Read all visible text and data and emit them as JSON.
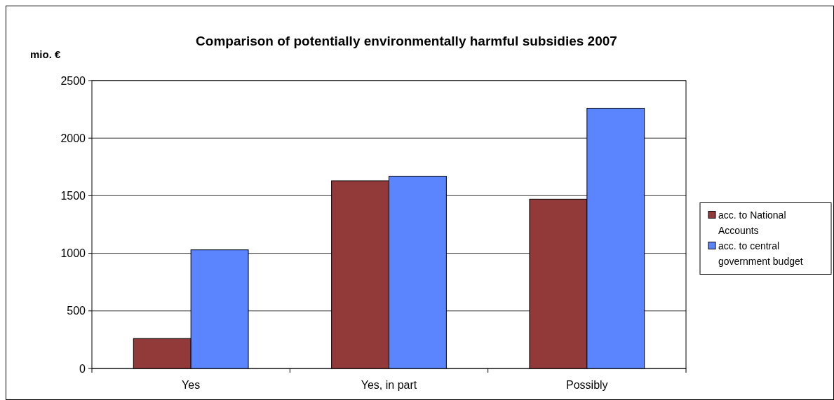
{
  "chart_data": {
    "type": "bar",
    "title": "Comparison of potentially environmentally harmful subsidies 2007",
    "ylabel": "mio. €",
    "categories": [
      "Yes",
      "Yes, in part",
      "Possibly"
    ],
    "series": [
      {
        "name": "acc. to National Accounts",
        "color": "#923a3a",
        "values": [
          260,
          1630,
          1470
        ]
      },
      {
        "name": "acc. to central government budget",
        "color": "#5b85ff",
        "values": [
          1030,
          1670,
          2260
        ]
      }
    ],
    "ylim": [
      0,
      2500
    ],
    "yticks": [
      0,
      500,
      1000,
      1500,
      2000,
      2500
    ],
    "grid": "y",
    "legend": "right"
  }
}
